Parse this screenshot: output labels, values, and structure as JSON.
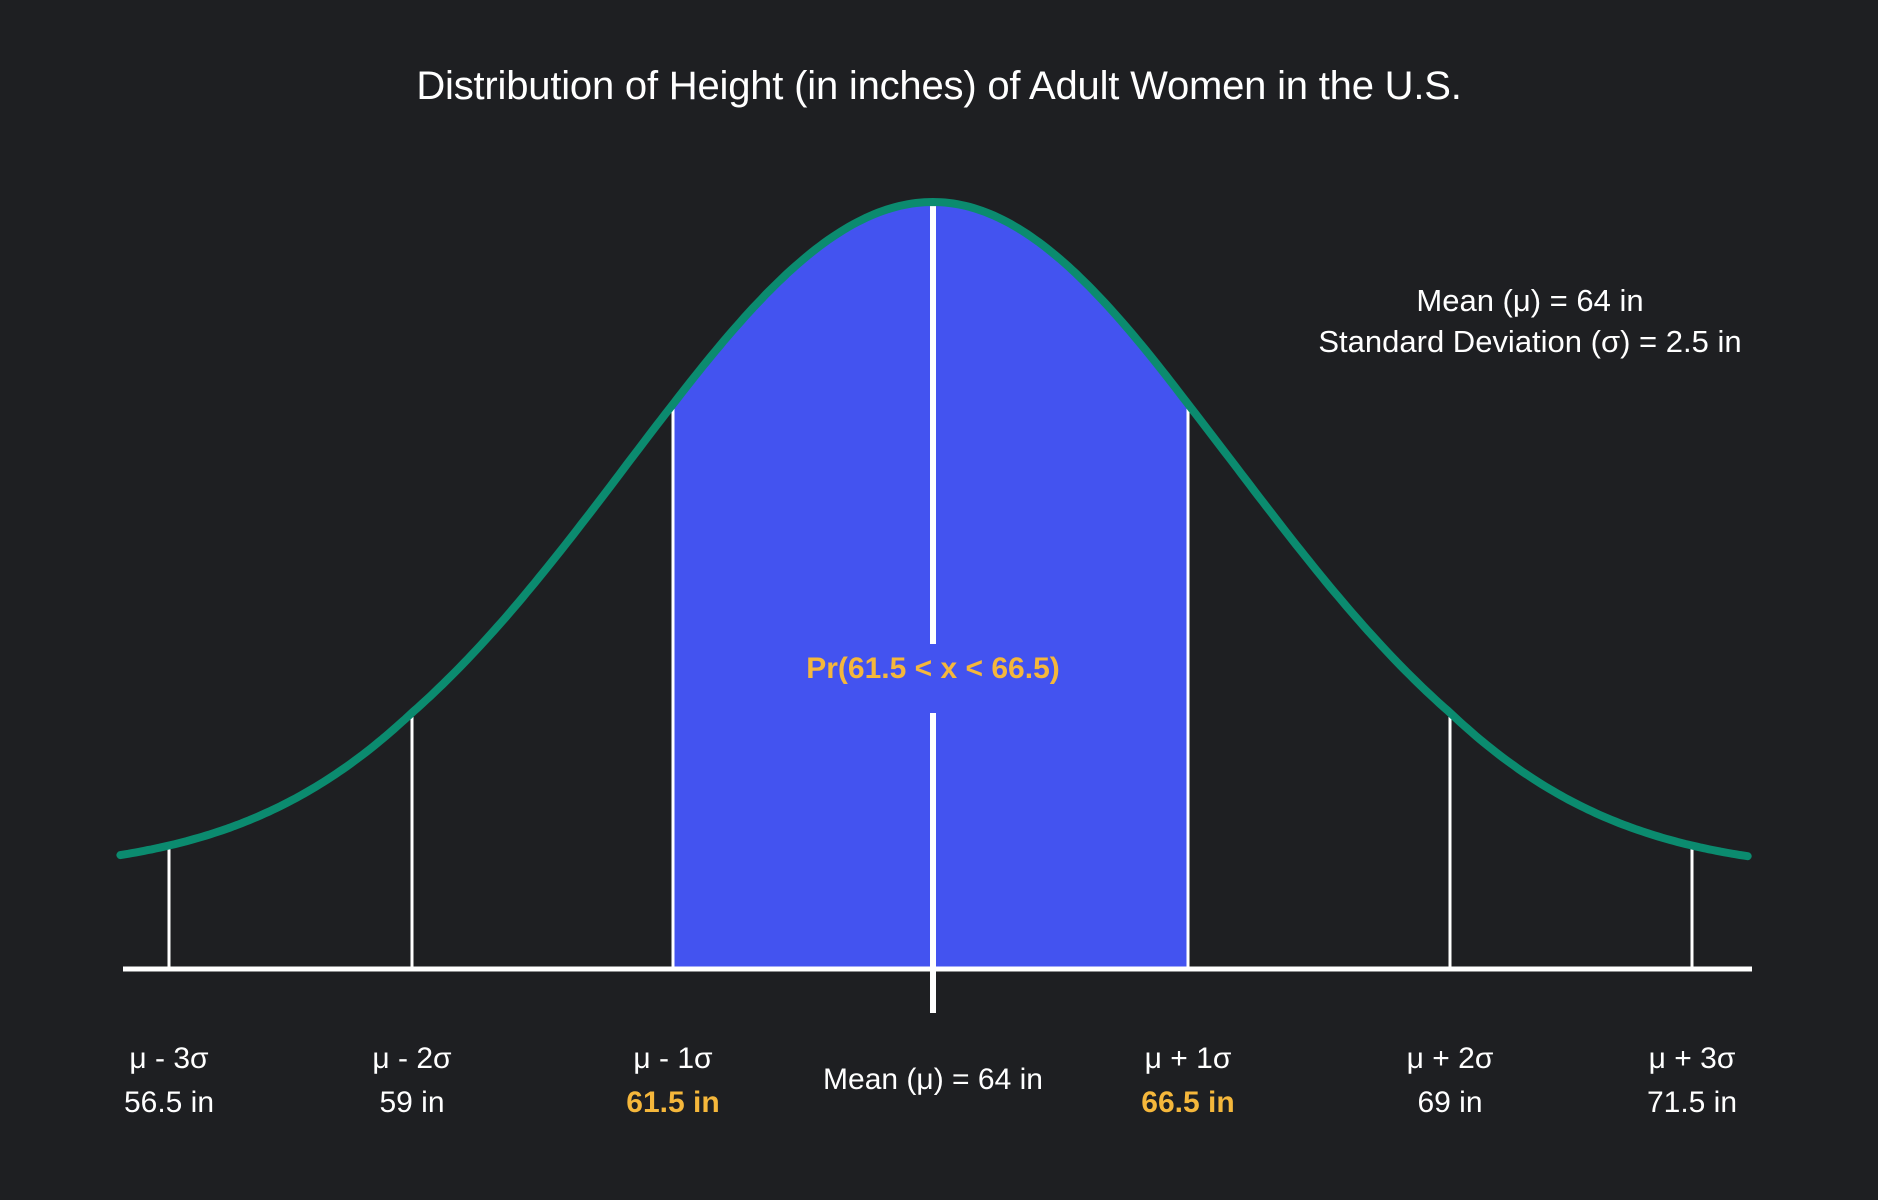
{
  "chart_data": {
    "type": "area",
    "title": "Distribution of Height (in inches) of Adult Women in the U.S.",
    "distribution": "normal",
    "mean": 64,
    "std_dev": 2.5,
    "unit": "in",
    "xlabel": "",
    "ylabel": "",
    "grid": false,
    "legend": null,
    "x_ticks": [
      {
        "symbol": "μ - 3σ",
        "value": 56.5,
        "label": "56.5 in",
        "highlight": false
      },
      {
        "symbol": "μ - 2σ",
        "value": 59,
        "label": "59 in",
        "highlight": false
      },
      {
        "symbol": "μ - 1σ",
        "value": 61.5,
        "label": "61.5 in",
        "highlight": true
      },
      {
        "symbol": "Mean (μ)",
        "value": 64,
        "label": "Mean (μ) = 64 in",
        "highlight": false
      },
      {
        "symbol": "μ + 1σ",
        "value": 66.5,
        "label": "66.5 in",
        "highlight": true
      },
      {
        "symbol": "μ + 2σ",
        "value": 69,
        "label": "69 in",
        "highlight": false
      },
      {
        "symbol": "μ + 3σ",
        "value": 71.5,
        "label": "71.5 in",
        "highlight": false
      }
    ],
    "shaded_region": {
      "from": 61.5,
      "to": 66.5,
      "label": "Pr(61.5 < x < 66.5)"
    },
    "annotations": [
      "Mean (μ) = 64 in",
      "Standard Deviation (σ) = 2.5 in"
    ],
    "xlim": [
      55.4,
      72.9
    ]
  },
  "title": "Distribution of Height (in inches) of Adult Women in the U.S.",
  "stats": {
    "mean_line": "Mean (μ) = 64 in",
    "sd_line": "Standard Deviation (σ) = 2.5 in"
  },
  "shaded_label": "Pr(61.5 < x < 66.5)",
  "axis_labels": {
    "m3": {
      "sym": "μ - 3σ",
      "val": "56.5 in"
    },
    "m2": {
      "sym": "μ - 2σ",
      "val": "59 in"
    },
    "m1": {
      "sym": "μ - 1σ",
      "val": "61.5 in"
    },
    "mean": "Mean (μ) = 64 in",
    "p1": {
      "sym": "μ + 1σ",
      "val": "66.5 in"
    },
    "p2": {
      "sym": "μ + 2σ",
      "val": "69 in"
    },
    "p3": {
      "sym": "μ + 3σ",
      "val": "71.5 in"
    }
  },
  "colors": {
    "background": "#1e1f22",
    "curve": "#0b8b6f",
    "fill": "#4353f0",
    "highlight": "#f5b73b",
    "axis": "#ffffff"
  }
}
